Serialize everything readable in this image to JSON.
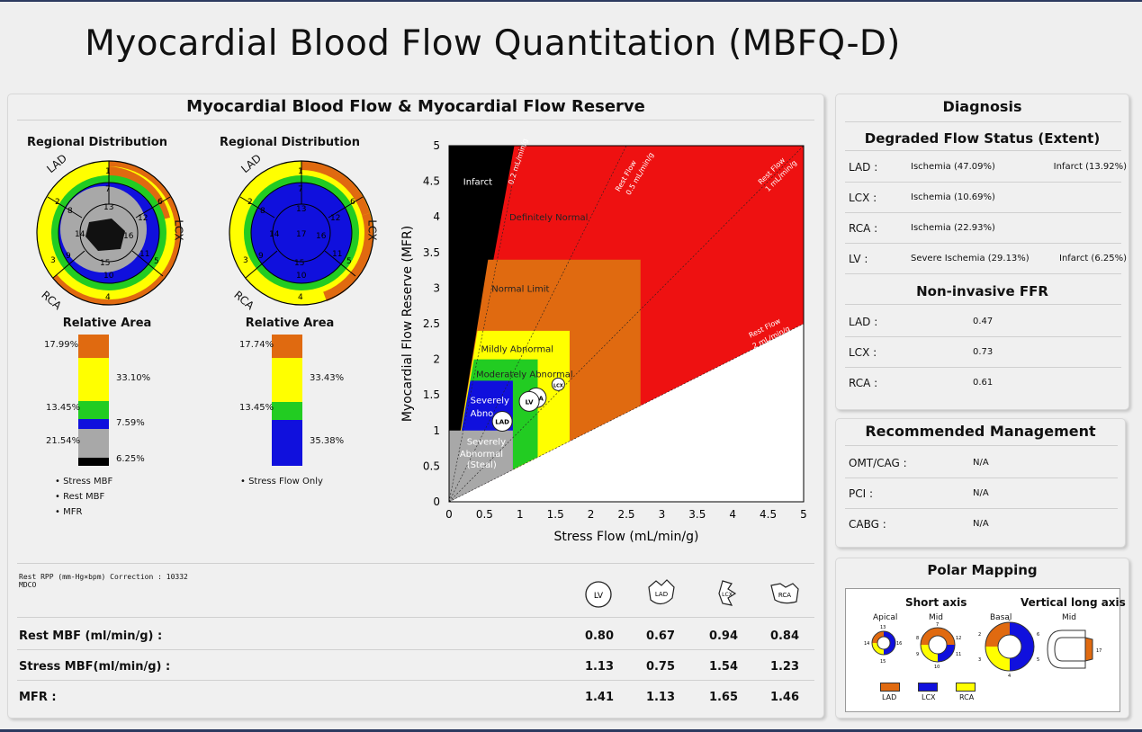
{
  "title": "Myocardial Blood Flow Quantitation (MBFQ-D)",
  "left_panel": {
    "title": "Myocardial Blood Flow & Myocardial Flow Reserve",
    "polar_maps": [
      {
        "heading": "Regional Distribution",
        "labels": {
          "lad": "LAD",
          "lcx": "LCX",
          "rca": "RCA"
        }
      },
      {
        "heading": "Regional Distribution",
        "labels": {
          "lad": "LAD",
          "lcx": "LCX",
          "rca": "RCA"
        }
      }
    ],
    "relative_area": [
      {
        "heading": "Relative Area",
        "labels_left": [
          "17.99%",
          "13.45%",
          "21.54%"
        ],
        "labels_right": [
          "33.10%",
          "7.59%",
          "6.25%"
        ],
        "legend": [
          "Stress MBF",
          "Rest MBF",
          "MFR"
        ]
      },
      {
        "heading": "Relative Area",
        "labels_left": [
          "17.74%",
          "13.45%"
        ],
        "labels_right": [
          "33.43%",
          "35.38%"
        ],
        "legend": [
          "Stress Flow Only"
        ]
      }
    ],
    "correction_note_line1": "Rest RPP (mm-Hg×bpm) Correction : 10332",
    "correction_note_line2": "MDCO",
    "vessel_icons": [
      "LV",
      "LAD",
      "LCX",
      "RCA"
    ],
    "table": {
      "rows": [
        {
          "label": "Rest MBF (ml/min/g) :",
          "values": [
            "0.80",
            "0.67",
            "0.94",
            "0.84"
          ]
        },
        {
          "label": "Stress MBF(ml/min/g) :",
          "values": [
            "1.13",
            "0.75",
            "1.54",
            "1.23"
          ]
        },
        {
          "label": "MFR :",
          "values": [
            "1.41",
            "1.13",
            "1.65",
            "1.46"
          ]
        }
      ]
    }
  },
  "chart_data": {
    "type": "scatter",
    "xlabel": "Stress Flow (mL/min/g)",
    "ylabel": "Myocardial Flow Reserve (MFR)",
    "xlim": [
      0,
      5
    ],
    "ylim": [
      0,
      5
    ],
    "xticks": [
      "0",
      "0.5",
      "1",
      "1.5",
      "2",
      "2.5",
      "3",
      "3.5",
      "4",
      "4.5",
      "5"
    ],
    "yticks": [
      "0",
      "0.5",
      "1",
      "1.5",
      "2",
      "2.5",
      "3",
      "3.5",
      "4",
      "4.5",
      "5"
    ],
    "region_labels": [
      "Infarct",
      "Definitely Normal",
      "Normal Limit",
      "Mildly Abnormal",
      "Moderately Abnormal",
      "Severely Abnormal",
      "Severely Abnormal (Steal)"
    ],
    "iso_lines": [
      "0.2 mL/min/g",
      "Rest Flow 0.5 mL/min/g",
      "Rest Flow 1 mL/min/g",
      "Rest Flow 2 mL/min/g"
    ],
    "points": [
      {
        "name": "LAD",
        "x": 0.75,
        "y": 1.13
      },
      {
        "name": "LCX",
        "x": 1.54,
        "y": 1.65
      },
      {
        "name": "RCA",
        "x": 1.23,
        "y": 1.46
      },
      {
        "name": "LV",
        "x": 1.13,
        "y": 1.41
      }
    ],
    "colors": {
      "infarct": "#000000",
      "normal": "#ee1111",
      "limit": "#e06a10",
      "mild": "#ffff00",
      "moderate": "#22cc22",
      "severe": "#1010dd",
      "steal": "#a8a8a8"
    }
  },
  "diagnosis": {
    "title": "Diagnosis",
    "subtitle": "Degraded Flow Status (Extent)",
    "rows": [
      {
        "label": "LAD :",
        "value": "Ischemia (47.09%)",
        "extra": "Infarct (13.92%)"
      },
      {
        "label": "LCX :",
        "value": "Ischemia (10.69%)",
        "extra": ""
      },
      {
        "label": "RCA :",
        "value": "Ischemia (22.93%)",
        "extra": ""
      },
      {
        "label": "LV :",
        "value": "Severe Ischemia (29.13%)",
        "extra": "Infarct (6.25%)"
      }
    ],
    "ffr_title": "Non-invasive FFR",
    "ffr_rows": [
      {
        "label": "LAD :",
        "value": "0.47"
      },
      {
        "label": "LCX :",
        "value": "0.73"
      },
      {
        "label": "RCA :",
        "value": "0.61"
      }
    ]
  },
  "management": {
    "title": "Recommended Management",
    "rows": [
      {
        "label": "OMT/CAG :",
        "value": "N/A"
      },
      {
        "label": "PCI :",
        "value": "N/A"
      },
      {
        "label": "CABG :",
        "value": "N/A"
      }
    ]
  },
  "polar_mapping": {
    "title": "Polar Mapping",
    "short_axis": "Short axis",
    "vertical_long_axis": "Vertical long axis",
    "apical": "Apical",
    "mid": "Mid",
    "basal": "Basal",
    "mid2": "Mid",
    "legend": [
      "LAD",
      "LCX",
      "RCA"
    ]
  }
}
